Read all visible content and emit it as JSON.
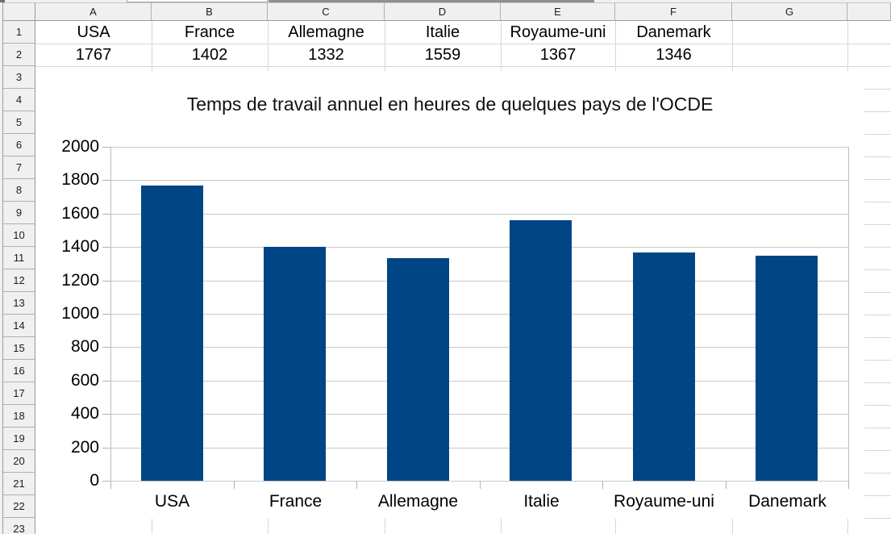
{
  "sheet": {
    "column_headers": [
      "A",
      "B",
      "C",
      "D",
      "E",
      "F",
      "G"
    ],
    "row_headers": [
      "1",
      "2",
      "3",
      "4",
      "5",
      "6",
      "7",
      "8",
      "9",
      "10",
      "11",
      "12",
      "13",
      "14",
      "15",
      "16",
      "17",
      "18",
      "19",
      "20",
      "21",
      "22",
      "23"
    ],
    "row1_labels": [
      "USA",
      "France",
      "Allemagne",
      "Italie",
      "Royaume-uni",
      "Danemark"
    ],
    "row2_values": [
      "1767",
      "1402",
      "1332",
      "1559",
      "1367",
      "1346"
    ]
  },
  "chart_data": {
    "type": "bar",
    "title": "Temps de travail annuel en heures de quelques pays de l'OCDE",
    "categories": [
      "USA",
      "France",
      "Allemagne",
      "Italie",
      "Royaume-uni",
      "Danemark"
    ],
    "values": [
      1767,
      1402,
      1332,
      1559,
      1367,
      1346
    ],
    "xlabel": "",
    "ylabel": "",
    "ylim": [
      0,
      2000
    ],
    "ytick_step": 200,
    "ytick_labels": [
      "0",
      "200",
      "400",
      "600",
      "800",
      "1000",
      "1200",
      "1400",
      "1600",
      "1800",
      "2000"
    ],
    "grid": true,
    "legend": "none",
    "bar_color": "#004586",
    "gridline_color": "#c9c9c9"
  },
  "colors": {
    "bar": "#004586",
    "header_bg": "#f0f0f0",
    "grid": "#d7d7d7",
    "chart_grid": "#c9c9c9"
  }
}
